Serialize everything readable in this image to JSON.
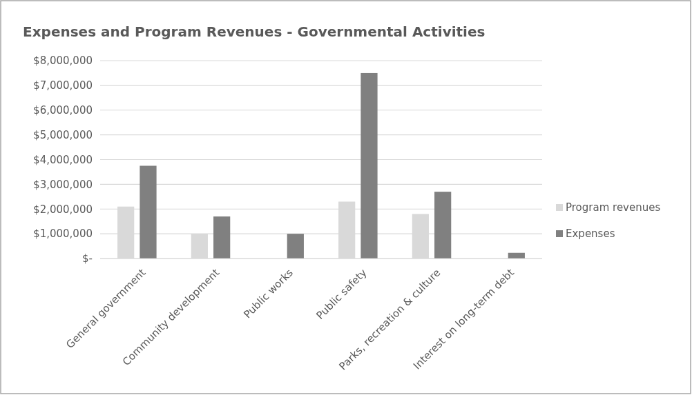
{
  "chart_data": {
    "type": "bar",
    "title": "Expenses and Program Revenues - Governmental Activities",
    "categories": [
      "General government",
      "Community development",
      "Public works",
      "Public safety",
      "Parks, recreation & culture",
      "Interest on long-term debt"
    ],
    "series": [
      {
        "name": "Program revenues",
        "color": "#d9d9d9",
        "values": [
          2100000,
          1000000,
          0,
          2300000,
          1800000,
          0
        ]
      },
      {
        "name": "Expenses",
        "color": "#808080",
        "values": [
          3750000,
          1700000,
          1000000,
          7500000,
          2700000,
          230000
        ]
      }
    ],
    "ylim": [
      0,
      8000000
    ],
    "yticks": [
      {
        "value": 0,
        "label": "$-"
      },
      {
        "value": 1000000,
        "label": "$1,000,000"
      },
      {
        "value": 2000000,
        "label": "$2,000,000"
      },
      {
        "value": 3000000,
        "label": "$3,000,000"
      },
      {
        "value": 4000000,
        "label": "$4,000,000"
      },
      {
        "value": 5000000,
        "label": "$5,000,000"
      },
      {
        "value": 6000000,
        "label": "$6,000,000"
      },
      {
        "value": 7000000,
        "label": "$7,000,000"
      },
      {
        "value": 8000000,
        "label": "$8,000,000"
      }
    ],
    "grid": "y",
    "legend": "right"
  }
}
